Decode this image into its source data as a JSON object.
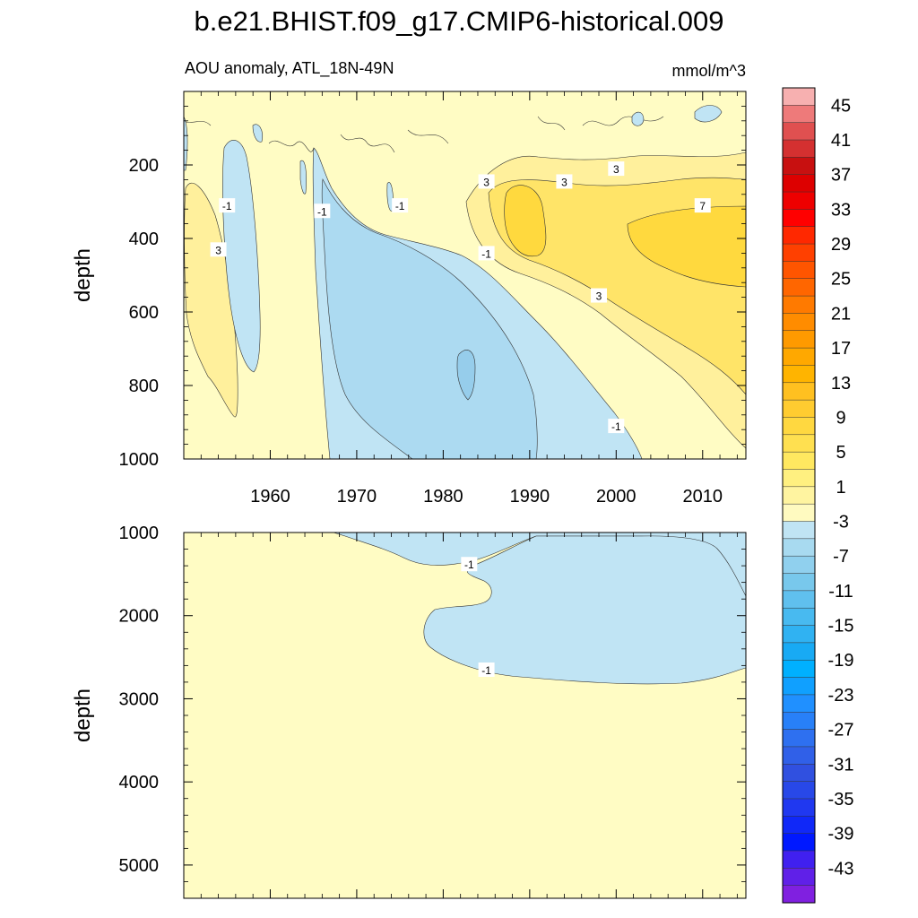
{
  "chart_data": {
    "type": "heatmap",
    "title": "b.e21.BHIST.f09_g17.CMIP6-historical.009",
    "subtitle_left": "AOU anomaly, ATL_18N-49N",
    "subtitle_right": "mmol/m^3",
    "upper_panel": {
      "ylabel": "depth",
      "ylim": [
        0,
        1000
      ],
      "yticks": [
        "200",
        "400",
        "600",
        "800",
        "1000"
      ],
      "xlim": [
        1950,
        2015
      ],
      "xticks": [
        "1960",
        "1970",
        "1980",
        "1990",
        "2000",
        "2010"
      ],
      "contour_labels": [
        {
          "text": "-1",
          "x": 1955,
          "y": 310
        },
        {
          "text": "3",
          "x": 1954,
          "y": 430
        },
        {
          "text": "-1",
          "x": 1966,
          "y": 325
        },
        {
          "text": "-1",
          "x": 1975,
          "y": 310
        },
        {
          "text": "3",
          "x": 1985,
          "y": 245
        },
        {
          "text": "-1",
          "x": 1985,
          "y": 440
        },
        {
          "text": "3",
          "x": 1994,
          "y": 245
        },
        {
          "text": "3",
          "x": 2000,
          "y": 210
        },
        {
          "text": "7",
          "x": 2010,
          "y": 310
        },
        {
          "text": "3",
          "x": 1998,
          "y": 555
        },
        {
          "text": "-1",
          "x": 2000,
          "y": 910
        }
      ]
    },
    "lower_panel": {
      "ylabel": "depth",
      "ylim": [
        1000,
        5400
      ],
      "yticks": [
        "1000",
        "2000",
        "3000",
        "4000",
        "5000"
      ],
      "xlim": [
        1950,
        2015
      ],
      "contour_labels": [
        {
          "text": "-1",
          "x": 1983,
          "y": 1380
        },
        {
          "text": "-1",
          "x": 1985,
          "y": 2650
        }
      ]
    },
    "colorbar": {
      "labels": [
        "45",
        "41",
        "37",
        "33",
        "29",
        "25",
        "21",
        "17",
        "13",
        "9",
        "5",
        "1",
        "-3",
        "-7",
        "-11",
        "-15",
        "-19",
        "-23",
        "-27",
        "-31",
        "-35",
        "-39",
        "-43"
      ],
      "colors": [
        "#f7b0b0",
        "#ee7a7a",
        "#e05050",
        "#d43030",
        "#c81010",
        "#dd0000",
        "#ee0000",
        "#ff0000",
        "#ff2800",
        "#ff4000",
        "#ff5500",
        "#ff6600",
        "#ff7a00",
        "#ff8c00",
        "#ff9a00",
        "#ffa800",
        "#ffb400",
        "#ffc020",
        "#ffcc30",
        "#ffd840",
        "#ffe050",
        "#ffe860",
        "#fff080",
        "#fff4a0",
        "#fffac0",
        "#c0e4f4",
        "#a8daf0",
        "#90d0ee",
        "#78c8ec",
        "#60c0ee",
        "#48baf0",
        "#30b2f2",
        "#18aaf4",
        "#00b0ff",
        "#10a0ff",
        "#2090ff",
        "#2880f8",
        "#2e70f0",
        "#3060e8",
        "#3050e0",
        "#2848e8",
        "#2038f0",
        "#1028f8",
        "#0018ff",
        "#4020f0",
        "#6020e8",
        "#8020e0"
      ]
    }
  }
}
